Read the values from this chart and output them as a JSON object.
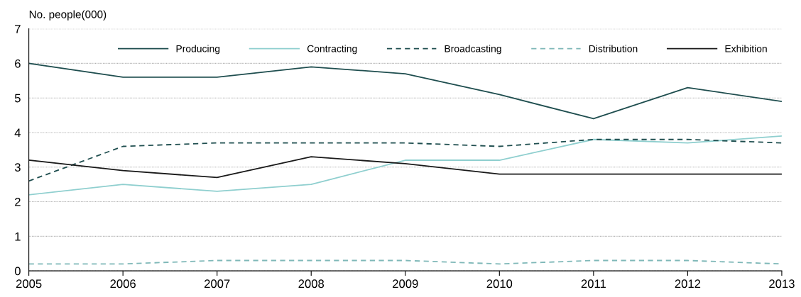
{
  "chart_data": {
    "type": "line",
    "ylabel": "No. people(000)",
    "x": [
      2005,
      2006,
      2007,
      2008,
      2009,
      2010,
      2011,
      2012,
      2013
    ],
    "xlim": [
      2005,
      2013
    ],
    "xticks": [
      2005,
      2006,
      2007,
      2008,
      2009,
      2010,
      2011,
      2012,
      2013
    ],
    "ylim": [
      0,
      7
    ],
    "yticks": [
      0,
      1,
      2,
      3,
      4,
      5,
      6,
      7
    ],
    "grid": "y",
    "legend": "top",
    "marker": "none",
    "series": [
      {
        "name": "Producing",
        "color": "#1f4e4f",
        "line_style": "solid",
        "values": [
          6.0,
          5.6,
          5.6,
          5.9,
          5.7,
          5.1,
          4.4,
          5.3,
          4.9
        ]
      },
      {
        "name": "Contracting",
        "color": "#8fcfcf",
        "line_style": "solid",
        "values": [
          2.2,
          2.5,
          2.3,
          2.5,
          3.2,
          3.2,
          3.8,
          3.7,
          3.9
        ]
      },
      {
        "name": "Broadcasting",
        "color": "#1f4e4f",
        "line_style": "dashed",
        "values": [
          2.6,
          3.6,
          3.7,
          3.7,
          3.7,
          3.6,
          3.8,
          3.8,
          3.7
        ]
      },
      {
        "name": "Distribution",
        "color": "#7fb8b8",
        "line_style": "dashed",
        "values": [
          0.2,
          0.2,
          0.3,
          0.3,
          0.3,
          0.2,
          0.3,
          0.3,
          0.2
        ]
      },
      {
        "name": "Exhibition",
        "color": "#1a1a1a",
        "line_style": "solid",
        "values": [
          3.2,
          2.9,
          2.7,
          3.3,
          3.1,
          2.8,
          2.8,
          2.8,
          2.8
        ]
      }
    ]
  }
}
